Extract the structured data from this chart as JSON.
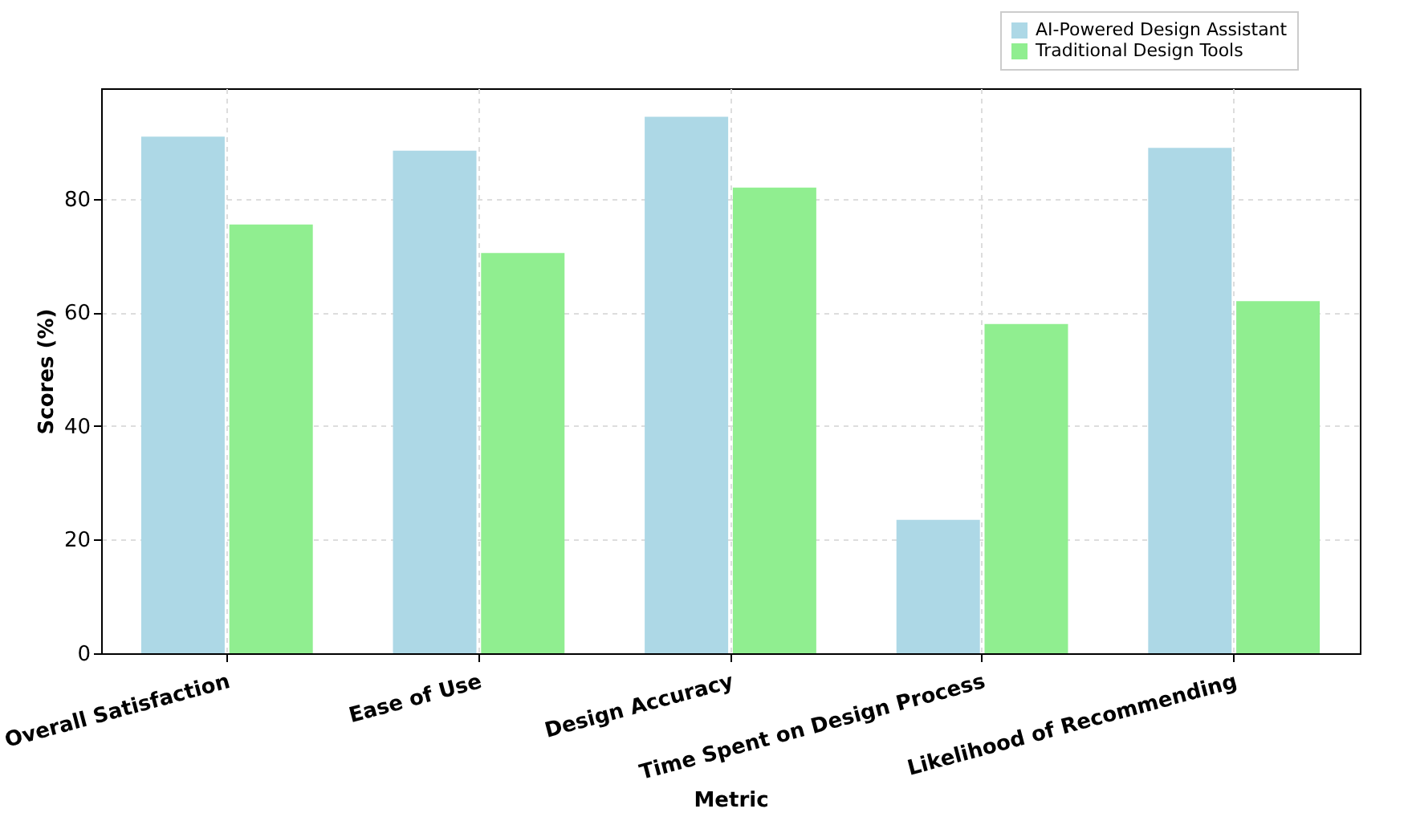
{
  "chart_data": {
    "type": "bar",
    "xlabel": "Metric",
    "ylabel": "Scores (%)",
    "categories": [
      "Overall Satisfaction",
      "Ease of Use",
      "Design Accuracy",
      "Time Spent on Design Process",
      "Likelihood of Recommending"
    ],
    "series": [
      {
        "name": "AI-Powered Design Assistant",
        "color": "#add8e6",
        "values": [
          91,
          88.5,
          94.5,
          23.5,
          89
        ]
      },
      {
        "name": "Traditional Design Tools",
        "color": "#90ee90",
        "values": [
          75.5,
          70.5,
          82,
          58,
          62
        ]
      }
    ],
    "ylim": [
      0,
      99.5
    ],
    "yticks": [
      0,
      20,
      40,
      60,
      80
    ],
    "grid": true,
    "legend": "top right"
  }
}
